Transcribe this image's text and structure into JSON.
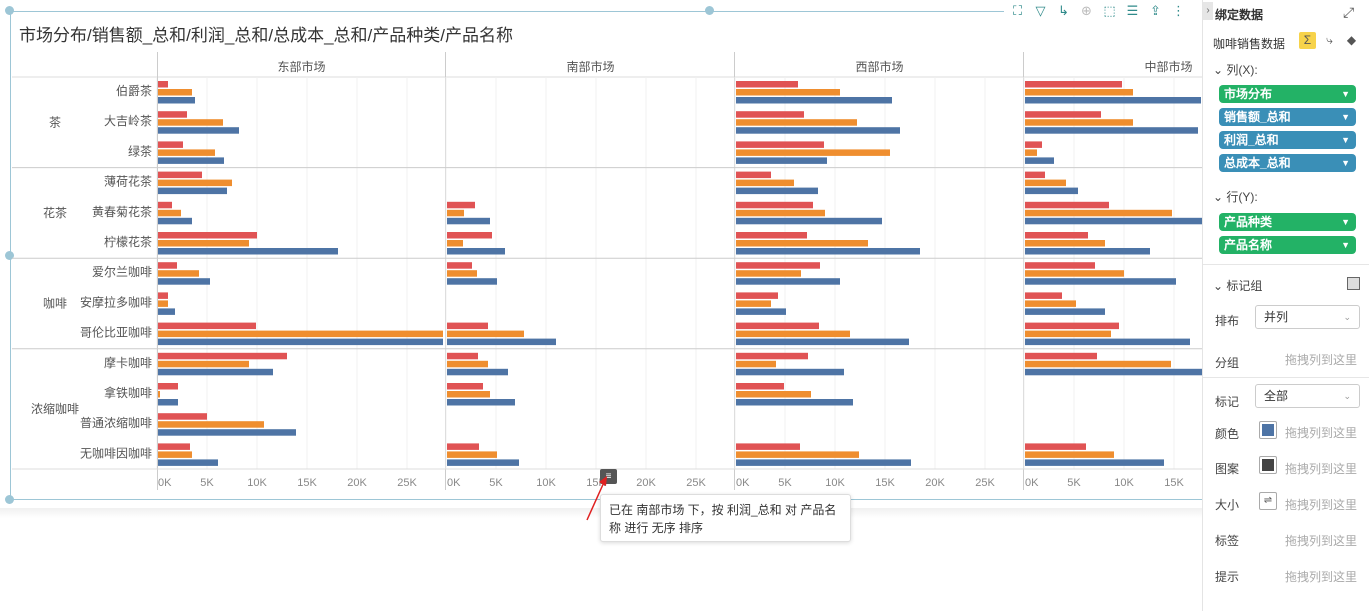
{
  "toolbar": {
    "icons": [
      "fullscreen-icon",
      "filter-icon",
      "drill-icon",
      "zoom-icon",
      "select-icon",
      "list-icon",
      "export-icon",
      "more-icon"
    ]
  },
  "chart": {
    "title": "市场分布/销售额_总和/利润_总和/总成本_总和/产品种类/产品名称"
  },
  "chart_data": {
    "type": "bar",
    "orientation": "horizontal",
    "title": "市场分布/销售额_总和/利润_总和/总成本_总和/产品种类/产品名称",
    "facets": [
      "东部市场",
      "南部市场",
      "西部市场",
      "中部市场"
    ],
    "x_ticks": [
      "0K",
      "5K",
      "10K",
      "15K",
      "20K",
      "25K"
    ],
    "xlim": [
      0,
      28000
    ],
    "series_colors": {
      "利润_总和": "#e05354",
      "销售额_总和": "#ef8e2f",
      "总成本_总和": "#4e74a5"
    },
    "groups": [
      {
        "category": "茶",
        "products": [
          "伯爵茶",
          "大吉岭茶",
          "绿茶"
        ]
      },
      {
        "category": "花茶",
        "products": [
          "薄荷花茶",
          "黄春菊花茶",
          "柠檬花茶"
        ]
      },
      {
        "category": "咖啡",
        "products": [
          "爱尔兰咖啡",
          "安摩拉多咖啡",
          "哥伦比亚咖啡"
        ]
      },
      {
        "category": "浓缩咖啡",
        "products": [
          "摩卡咖啡",
          "拿铁咖啡",
          "普通浓缩咖啡",
          "无咖啡因咖啡"
        ]
      }
    ],
    "values": {
      "东部市场": [
        [
          1000,
          3400,
          3700
        ],
        [
          2900,
          6500,
          8100
        ],
        [
          2500,
          5700,
          6600
        ],
        [
          4400,
          7400,
          6900
        ],
        [
          1400,
          2300,
          3400
        ],
        [
          9900,
          9100,
          18000
        ],
        [
          1900,
          4100,
          5200
        ],
        [
          1000,
          1000,
          1700
        ],
        [
          9800,
          28500,
          28500
        ],
        [
          12900,
          9100,
          11500
        ],
        [
          2000,
          200,
          2000
        ],
        [
          4900,
          10600,
          13800
        ],
        [
          3200,
          3400,
          6000
        ]
      ],
      "南部市场": [
        [
          0,
          0,
          0
        ],
        [
          0,
          0,
          0
        ],
        [
          0,
          0,
          0
        ],
        [
          0,
          0,
          0
        ],
        [
          2800,
          1700,
          4300
        ],
        [
          4500,
          1600,
          5800
        ],
        [
          2500,
          3000,
          5000
        ],
        [
          0,
          0,
          0
        ],
        [
          4100,
          7700,
          10900
        ],
        [
          3100,
          4100,
          6100
        ],
        [
          3600,
          4300,
          6800
        ],
        [
          0,
          0,
          0
        ],
        [
          3200,
          5000,
          7200
        ]
      ],
      "西部市场": [
        [
          6200,
          10400,
          15600
        ],
        [
          6800,
          12100,
          16400
        ],
        [
          8800,
          15400,
          9100
        ],
        [
          3500,
          5800,
          8200
        ],
        [
          7700,
          8900,
          14600
        ],
        [
          7100,
          13200,
          18400
        ],
        [
          8400,
          6500,
          10400
        ],
        [
          4200,
          3500,
          5000
        ],
        [
          8300,
          11400,
          17300
        ],
        [
          7200,
          4000,
          10800
        ],
        [
          4800,
          7500,
          11700
        ],
        [
          0,
          0,
          0
        ],
        [
          6400,
          12300,
          17500
        ]
      ],
      "中部市场": [
        [
          9700,
          10800,
          17600
        ],
        [
          7600,
          10800,
          17300
        ],
        [
          1700,
          1200,
          2900
        ],
        [
          2000,
          4100,
          5300
        ],
        [
          8400,
          14700,
          17800
        ],
        [
          6300,
          8000,
          12500
        ],
        [
          7000,
          9900,
          15100
        ],
        [
          3700,
          5100,
          8000
        ],
        [
          9400,
          8600,
          16500
        ],
        [
          7200,
          14600,
          17800
        ],
        [
          0,
          0,
          0
        ],
        [
          0,
          0,
          0
        ],
        [
          6100,
          8900,
          13900
        ]
      ]
    }
  },
  "tooltip": {
    "line1": "已在 南部市场 下，按 利润_总和 对 产品名",
    "line2": "称 进行 无序 排序"
  },
  "panel": {
    "title": "绑定数据",
    "dataset": "咖啡销售数据",
    "columns_label": "列(X):",
    "columns": [
      {
        "label": "市场分布",
        "color": "green"
      },
      {
        "label": "销售额_总和",
        "color": "blue"
      },
      {
        "label": "利润_总和",
        "color": "blue"
      },
      {
        "label": "总成本_总和",
        "color": "blue"
      }
    ],
    "rows_label": "行(Y):",
    "rows": [
      {
        "label": "产品种类",
        "color": "green"
      },
      {
        "label": "产品名称",
        "color": "green"
      }
    ],
    "marks_label": "标记组",
    "layout_label": "排布",
    "layout_value": "并列",
    "group_label": "分组",
    "drop_hint": "拖拽列到这里",
    "mark_label": "标记",
    "mark_value": "全部",
    "color_label": "颜色",
    "shape_label": "图案",
    "size_label": "大小",
    "tag_label": "标签",
    "tip_label": "提示"
  }
}
